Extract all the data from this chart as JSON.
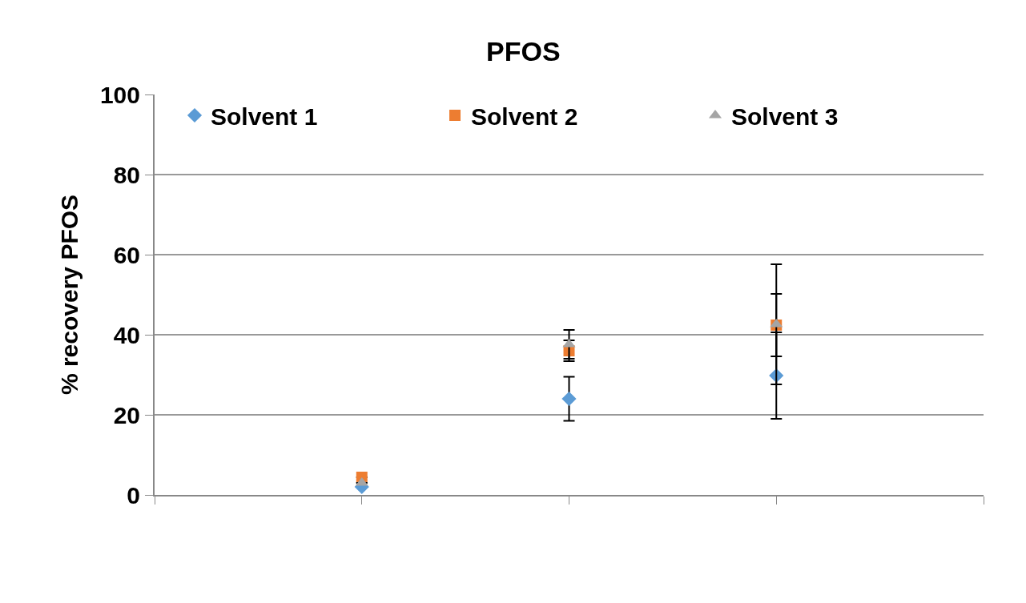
{
  "chart_data": {
    "type": "scatter",
    "title": "PFOS",
    "ylabel": "% recovery PFOS",
    "categories": [
      null,
      null,
      null
    ],
    "series": [
      {
        "name": "Solvent 1",
        "color": "#5b9bd5",
        "marker": "diamond",
        "values": [
          2,
          24,
          29.8
        ],
        "errors": [
          null,
          5.5,
          10.8
        ]
      },
      {
        "name": "Solvent 2",
        "color": "#ed7d31",
        "marker": "square",
        "values": [
          4.4,
          36,
          42.4
        ],
        "errors": [
          null,
          2.6,
          7.8
        ]
      },
      {
        "name": "Solvent 3",
        "color": "#a5a5a5",
        "marker": "triangle",
        "values": [
          3,
          37.6,
          42.6
        ],
        "errors": [
          null,
          3.6,
          15
        ]
      }
    ],
    "ylim": [
      0,
      100
    ],
    "yticks": [
      0,
      20,
      40,
      60,
      80,
      100
    ],
    "grid": "y",
    "legend": "top",
    "tick_labels": "y"
  }
}
